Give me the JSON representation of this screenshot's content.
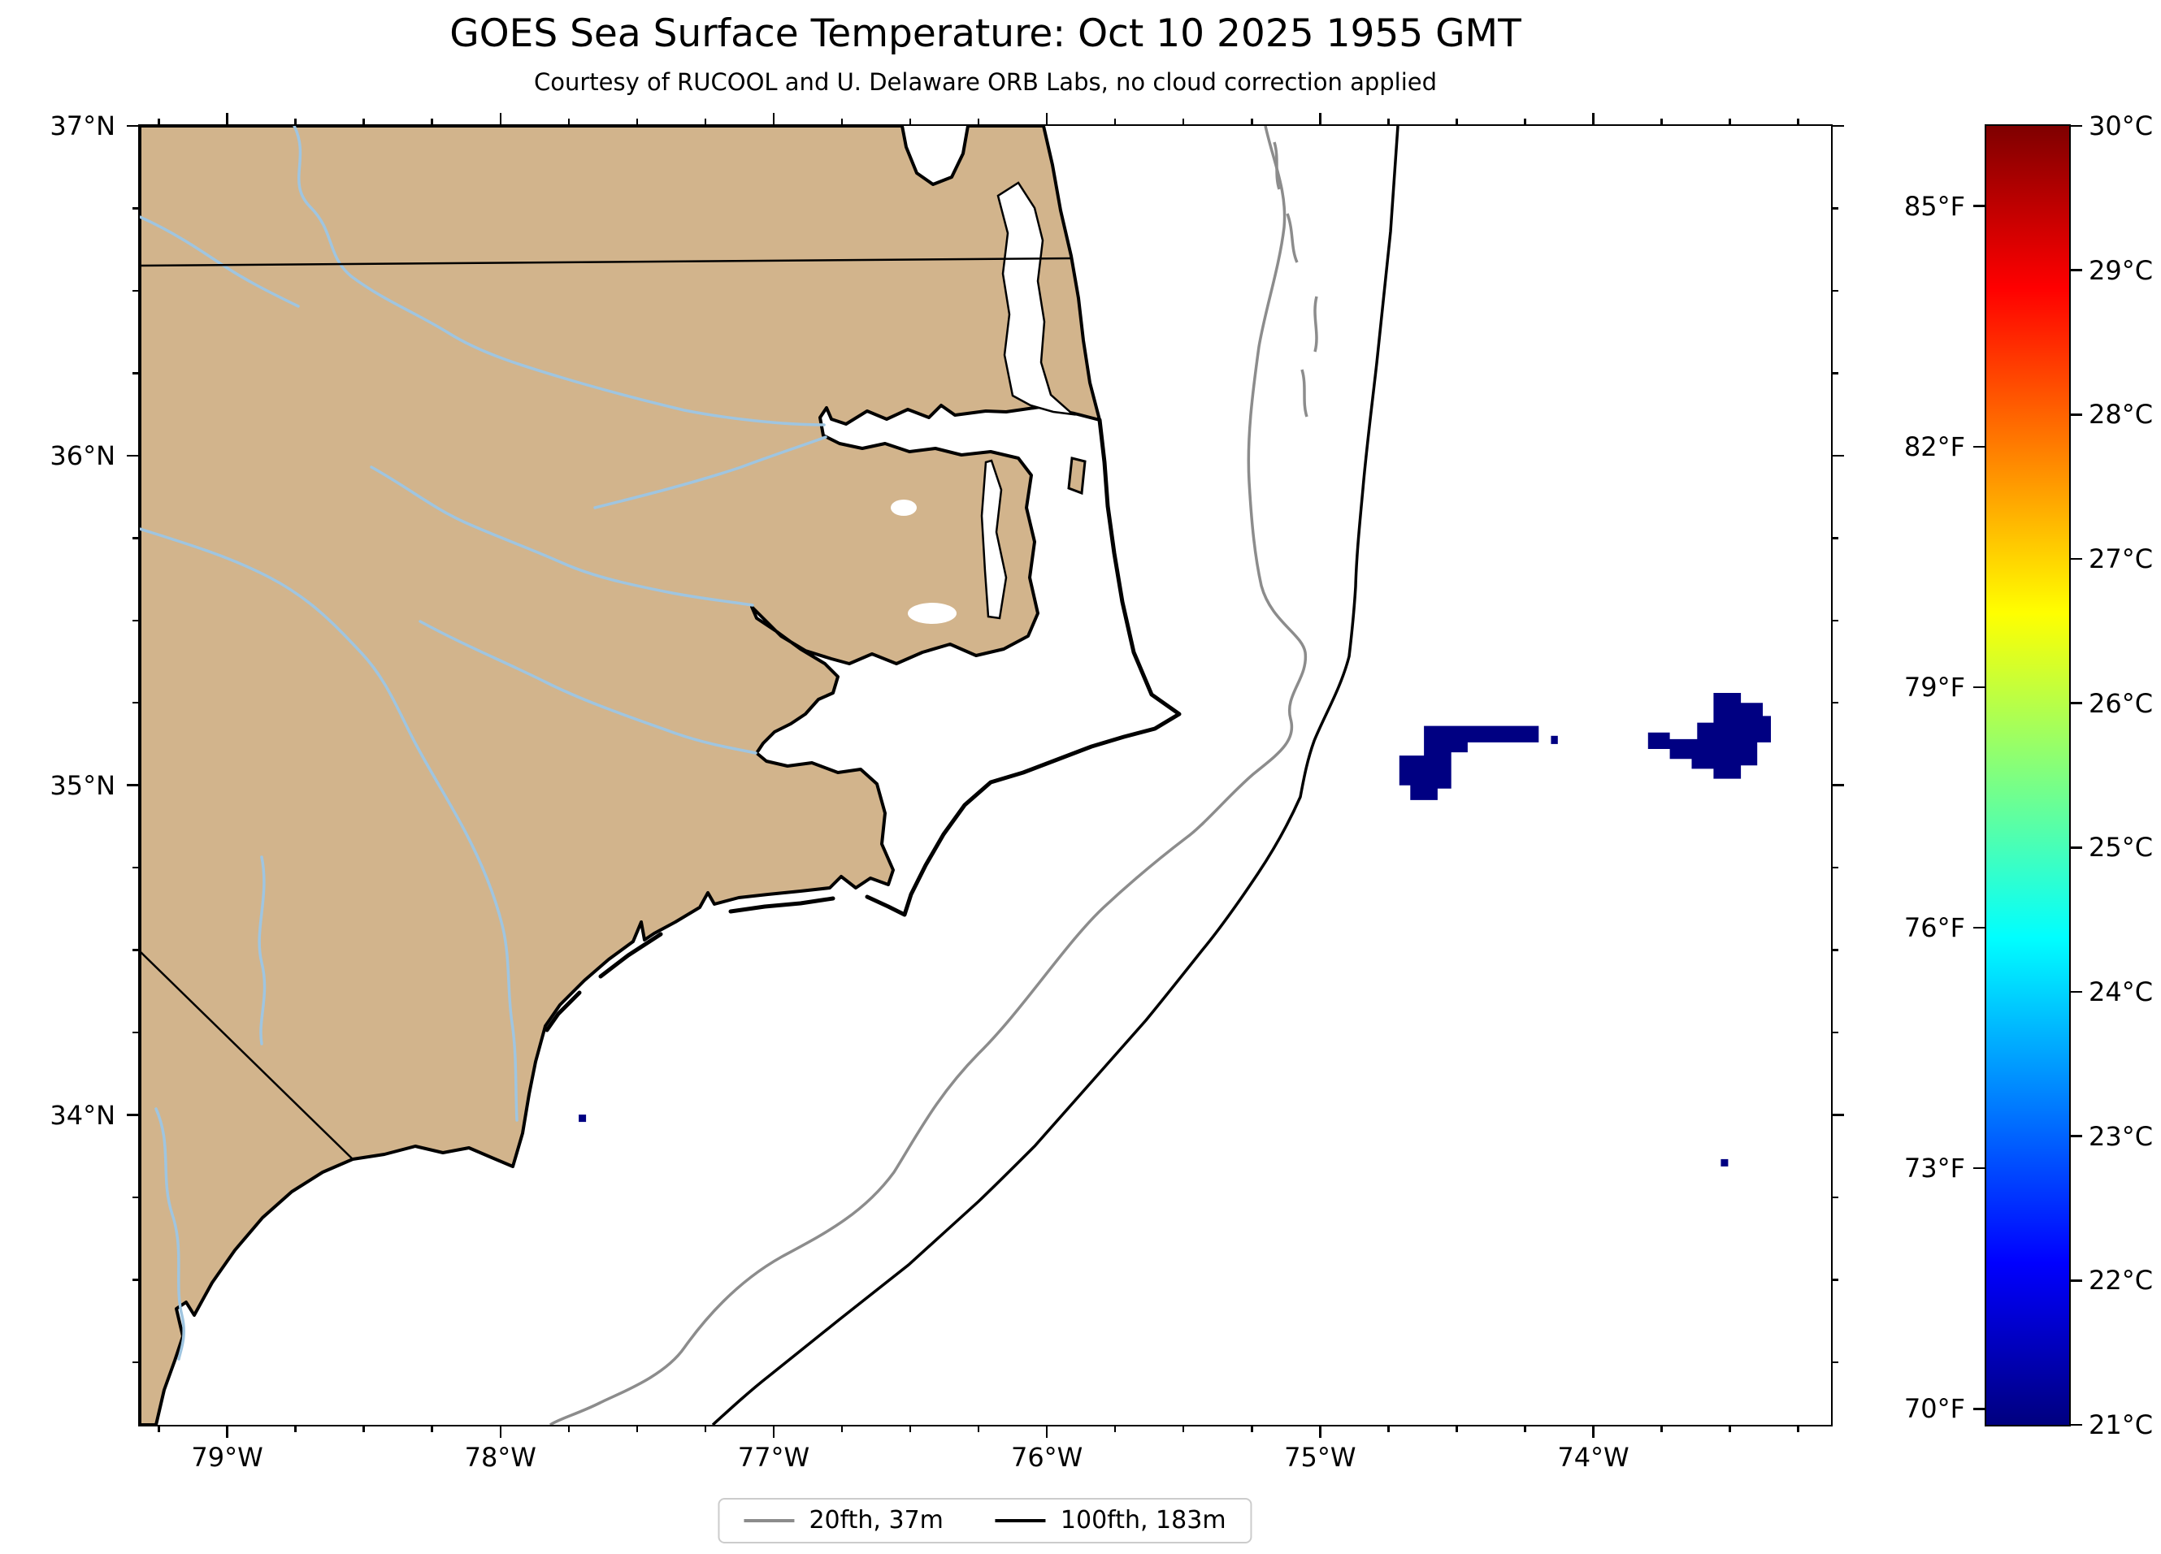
{
  "figure": {
    "title": "GOES Sea Surface Temperature: Oct 10 2025 1955 GMT",
    "subtitle": "Courtesy of RUCOOL and U. Delaware ORB Labs, no cloud correction applied"
  },
  "map": {
    "extent": {
      "lon_min": -79.32,
      "lon_max": -73.13,
      "lat_min": 33.06,
      "lat_max": 37.0
    },
    "lon_ticks": [
      {
        "label": "79°W",
        "value": -79
      },
      {
        "label": "78°W",
        "value": -78
      },
      {
        "label": "77°W",
        "value": -77
      },
      {
        "label": "76°W",
        "value": -76
      },
      {
        "label": "75°W",
        "value": -75
      },
      {
        "label": "74°W",
        "value": -74
      }
    ],
    "lat_ticks": [
      {
        "label": "37°N",
        "value": 37
      },
      {
        "label": "36°N",
        "value": 36
      },
      {
        "label": "35°N",
        "value": 35
      },
      {
        "label": "34°N",
        "value": 34
      }
    ],
    "minor_tick_step_deg": 0.25
  },
  "colorbar": {
    "colormap": "jet",
    "celsius": {
      "min": 21,
      "max": 30,
      "ticks": [
        {
          "label": "30°C",
          "value": 30
        },
        {
          "label": "29°C",
          "value": 29
        },
        {
          "label": "28°C",
          "value": 28
        },
        {
          "label": "27°C",
          "value": 27
        },
        {
          "label": "26°C",
          "value": 26
        },
        {
          "label": "25°C",
          "value": 25
        },
        {
          "label": "24°C",
          "value": 24
        },
        {
          "label": "23°C",
          "value": 23
        },
        {
          "label": "22°C",
          "value": 22
        },
        {
          "label": "21°C",
          "value": 21
        }
      ]
    },
    "fahrenheit_ticks": [
      {
        "label": "85°F",
        "value": 85
      },
      {
        "label": "82°F",
        "value": 82
      },
      {
        "label": "79°F",
        "value": 79
      },
      {
        "label": "76°F",
        "value": 76
      },
      {
        "label": "73°F",
        "value": 73
      },
      {
        "label": "70°F",
        "value": 70
      }
    ]
  },
  "legend": {
    "items": [
      {
        "label": "20fth, 37m",
        "color": "#8C8C8C"
      },
      {
        "label": "100fth, 183m",
        "color": "#000000"
      }
    ]
  },
  "colors": {
    "land": "#D2B48C",
    "ocean": "#FFFFFF",
    "river": "#9FC5E0",
    "coastline": "#000000",
    "contour_20fth": "#8C8C8C",
    "contour_100fth": "#000000",
    "sst_cold": "#000082",
    "frame": "#000000",
    "state_border": "#000000"
  },
  "chart_data": {
    "type": "heatmap",
    "title": "GOES Sea Surface Temperature: Oct 10 2025 1955 GMT",
    "subtitle": "Courtesy of RUCOOL and U. Delaware ORB Labs, no cloud correction applied",
    "region": "North Carolina coast / western Atlantic",
    "x_axis": {
      "label": "longitude",
      "tick_labels": [
        "79°W",
        "78°W",
        "77°W",
        "76°W",
        "75°W",
        "74°W"
      ],
      "range_deg_west": [
        79.32,
        73.13
      ]
    },
    "y_axis": {
      "label": "latitude",
      "tick_labels": [
        "37°N",
        "36°N",
        "35°N",
        "34°N"
      ],
      "range_deg_north": [
        33.06,
        37.0
      ]
    },
    "temperature_scale": {
      "colormap": "jet",
      "celsius_range": [
        21,
        30
      ],
      "fahrenheit_range": [
        70,
        85
      ]
    },
    "bathymetry_contours": [
      {
        "label": "20fth, 37m",
        "color": "#8C8C8C"
      },
      {
        "label": "100fth, 183m",
        "color": "#000000"
      }
    ],
    "sst_patches": [
      {
        "name": "cold-patch-west",
        "approx_temp_c": 21,
        "polygon": [
          [
            -74.62,
            35.18
          ],
          [
            -74.2,
            35.18
          ],
          [
            -74.2,
            35.13
          ],
          [
            -74.46,
            35.13
          ],
          [
            -74.46,
            35.1
          ],
          [
            -74.52,
            35.1
          ],
          [
            -74.52,
            34.99
          ],
          [
            -74.57,
            34.99
          ],
          [
            -74.57,
            34.955
          ],
          [
            -74.67,
            34.955
          ],
          [
            -74.67,
            35.0
          ],
          [
            -74.71,
            35.0
          ],
          [
            -74.71,
            35.09
          ],
          [
            -74.62,
            35.09
          ]
        ]
      },
      {
        "name": "cold-patch-west-fragment",
        "approx_temp_c": 21,
        "polygon": [
          [
            -74.155,
            35.15
          ],
          [
            -74.13,
            35.15
          ],
          [
            -74.13,
            35.125
          ],
          [
            -74.155,
            35.125
          ]
        ]
      },
      {
        "name": "cold-patch-east",
        "approx_temp_c": 21,
        "polygon": [
          [
            -73.56,
            35.28
          ],
          [
            -73.46,
            35.28
          ],
          [
            -73.46,
            35.25
          ],
          [
            -73.38,
            35.25
          ],
          [
            -73.38,
            35.21
          ],
          [
            -73.35,
            35.21
          ],
          [
            -73.35,
            35.13
          ],
          [
            -73.4,
            35.13
          ],
          [
            -73.4,
            35.06
          ],
          [
            -73.46,
            35.06
          ],
          [
            -73.46,
            35.02
          ],
          [
            -73.56,
            35.02
          ],
          [
            -73.56,
            35.05
          ],
          [
            -73.64,
            35.05
          ],
          [
            -73.64,
            35.08
          ],
          [
            -73.72,
            35.08
          ],
          [
            -73.72,
            35.11
          ],
          [
            -73.8,
            35.11
          ],
          [
            -73.8,
            35.16
          ],
          [
            -73.72,
            35.16
          ],
          [
            -73.72,
            35.14
          ],
          [
            -73.62,
            35.14
          ],
          [
            -73.62,
            35.19
          ],
          [
            -73.56,
            35.19
          ]
        ]
      }
    ],
    "sst_dots": [
      [
        -77.7,
        33.99
      ],
      [
        -73.52,
        33.855
      ]
    ]
  }
}
